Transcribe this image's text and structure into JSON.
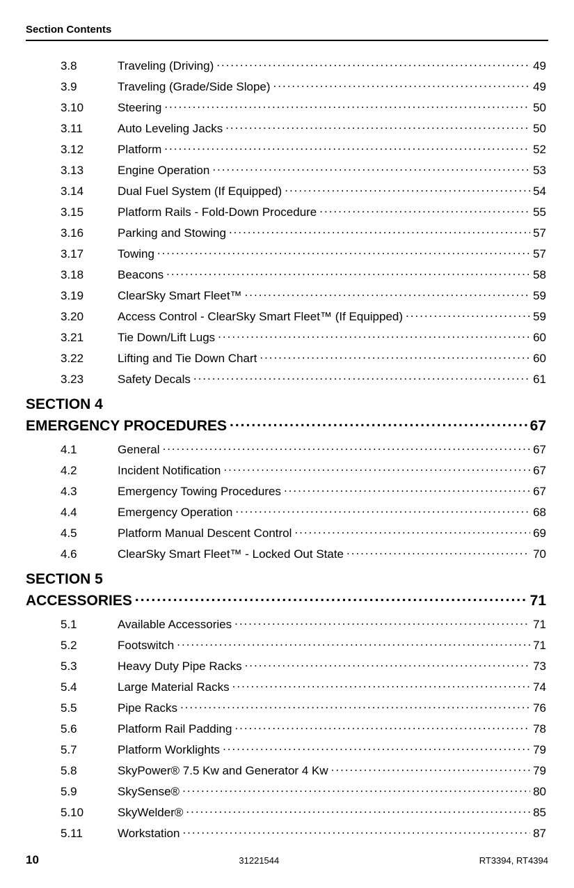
{
  "header": "Section Contents",
  "entries": [
    {
      "num": "3.8",
      "title": "Traveling (Driving)",
      "page": "49"
    },
    {
      "num": "3.9",
      "title": "Traveling (Grade/Side Slope)",
      "page": "49"
    },
    {
      "num": "3.10",
      "title": "Steering",
      "page": "50"
    },
    {
      "num": "3.11",
      "title": "Auto Leveling Jacks",
      "page": "50"
    },
    {
      "num": "3.12",
      "title": "Platform",
      "page": "52"
    },
    {
      "num": "3.13",
      "title": "Engine Operation",
      "page": "53"
    },
    {
      "num": "3.14",
      "title": "Dual Fuel System (If Equipped)",
      "page": "54"
    },
    {
      "num": "3.15",
      "title": "Platform Rails - Fold-Down Procedure",
      "page": "55"
    },
    {
      "num": "3.16",
      "title": "Parking and Stowing",
      "page": "57"
    },
    {
      "num": "3.17",
      "title": "Towing",
      "page": "57"
    },
    {
      "num": "3.18",
      "title": "Beacons",
      "page": "58"
    },
    {
      "num": "3.19",
      "title": "ClearSky Smart Fleet™",
      "page": "59"
    },
    {
      "num": "3.20",
      "title": "Access Control - ClearSky Smart Fleet™ (If Equipped)",
      "page": "59"
    },
    {
      "num": "3.21",
      "title": "Tie Down/Lift Lugs",
      "page": "60"
    },
    {
      "num": "3.22",
      "title": "Lifting and Tie Down Chart",
      "page": "60"
    },
    {
      "num": "3.23",
      "title": "Safety Decals",
      "page": "61"
    }
  ],
  "section4": {
    "head": "SECTION 4",
    "title": "EMERGENCY PROCEDURES",
    "page": "67",
    "entries": [
      {
        "num": "4.1",
        "title": "General",
        "page": "67"
      },
      {
        "num": "4.2",
        "title": "Incident Notification",
        "page": "67"
      },
      {
        "num": "4.3",
        "title": "Emergency Towing Procedures",
        "page": "67"
      },
      {
        "num": "4.4",
        "title": "Emergency Operation",
        "page": "68"
      },
      {
        "num": "4.5",
        "title": "Platform Manual Descent Control",
        "page": "69"
      },
      {
        "num": "4.6",
        "title": "ClearSky Smart Fleet™ - Locked Out State",
        "page": "70"
      }
    ]
  },
  "section5": {
    "head": "SECTION 5",
    "title": "ACCESSORIES",
    "page": "71",
    "entries": [
      {
        "num": "5.1",
        "title": "Available Accessories",
        "page": "71"
      },
      {
        "num": "5.2",
        "title": "Footswitch",
        "page": "71"
      },
      {
        "num": "5.3",
        "title": "Heavy Duty Pipe Racks",
        "page": "73"
      },
      {
        "num": "5.4",
        "title": "Large Material Racks",
        "page": "74"
      },
      {
        "num": "5.5",
        "title": "Pipe Racks",
        "page": "76"
      },
      {
        "num": "5.6",
        "title": "Platform Rail Padding",
        "page": "78"
      },
      {
        "num": "5.7",
        "title": "Platform Worklights",
        "page": "79"
      },
      {
        "num": "5.8",
        "title": "SkyPower® 7.5 Kw and Generator 4 Kw",
        "page": "79"
      },
      {
        "num": "5.9",
        "title": "SkySense®",
        "page": "80"
      },
      {
        "num": "5.10",
        "title": "SkyWelder®",
        "page": "85"
      },
      {
        "num": "5.11",
        "title": "Workstation",
        "page": "87"
      }
    ]
  },
  "footer": {
    "pageNo": "10",
    "docNo": "31221544",
    "model": "RT3394, RT4394"
  }
}
